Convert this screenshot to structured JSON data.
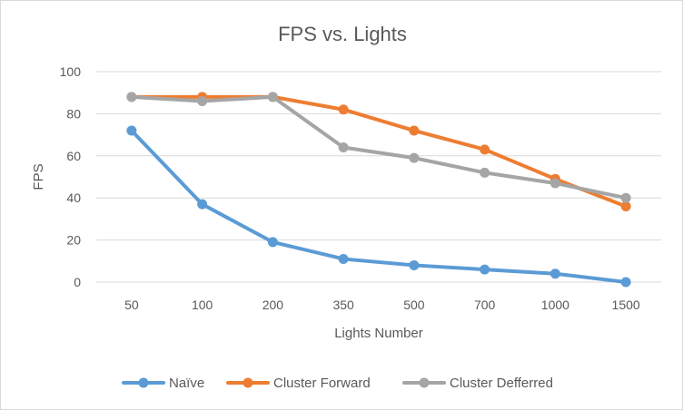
{
  "chart_data": {
    "type": "line",
    "title": "FPS vs. Lights",
    "xlabel": "Lights Number",
    "ylabel": "FPS",
    "categories": [
      "50",
      "100",
      "200",
      "350",
      "500",
      "700",
      "1000",
      "1500"
    ],
    "ylim": [
      0,
      100
    ],
    "yticks": [
      "0",
      "20",
      "40",
      "60",
      "80",
      "100"
    ],
    "grid": true,
    "legend_position": "bottom",
    "series": [
      {
        "name": "Naïve",
        "color": "#5b9bd5",
        "values": [
          72,
          37,
          19,
          11,
          8,
          6,
          4,
          0
        ]
      },
      {
        "name": "Cluster Forward",
        "color": "#ed7d31",
        "values": [
          88,
          88,
          88,
          82,
          72,
          63,
          49,
          36
        ]
      },
      {
        "name": "Cluster Defferred",
        "color": "#a5a5a5",
        "values": [
          88,
          86,
          88,
          64,
          59,
          52,
          47,
          40
        ]
      }
    ]
  }
}
